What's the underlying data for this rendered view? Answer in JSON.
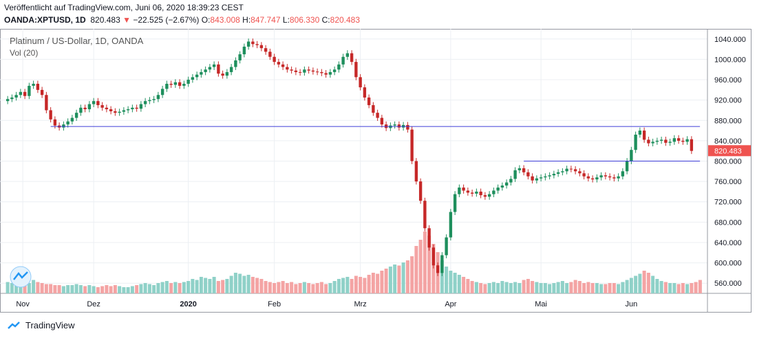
{
  "header": {
    "published": "Veröffentlicht auf TradingView.com, Juni 06, 2020 18:39:23 CEST",
    "symbol_line": "OANDA:XPTUSD, 1D",
    "last": "820.483",
    "change": "−22.525 (−2.67%)",
    "o_label": "O:",
    "o_val": "843.008",
    "h_label": "H:",
    "h_val": "847.747",
    "l_label": "L:",
    "l_val": "806.330",
    "c_label": "C:",
    "c_val": "820.483"
  },
  "legend": {
    "title": "Platinum / US-Dollar, 1D, OANDA",
    "volume": "Vol (20)"
  },
  "footer": {
    "brand": "TradingView"
  },
  "colors": {
    "up": "#26a69a",
    "down": "#ef5350",
    "up_candle": "#1e8f5d",
    "down_candle": "#c62828",
    "vol_up": "#8fd1c8",
    "vol_down": "#f4a4a4",
    "line": "#3c3cd6",
    "grid": "#eceff3"
  },
  "chart_data": {
    "type": "candlestick",
    "y_axis": {
      "range": [
        540,
        1060
      ],
      "ticks": [
        "560.000",
        "600.000",
        "640.000",
        "680.000",
        "720.000",
        "760.000",
        "800.000",
        "840.000",
        "880.000",
        "920.000",
        "960.000",
        "1000.000",
        "1040.000"
      ]
    },
    "x_axis": {
      "labels": [
        "Nov",
        "Dez",
        "2020",
        "Feb",
        "Mrz",
        "Apr",
        "Mai",
        "Jun"
      ]
    },
    "last_price_label": "820.483",
    "closes": [
      922,
      925,
      930,
      936,
      928,
      948,
      952,
      940,
      930,
      900,
      882,
      870,
      866,
      872,
      878,
      885,
      895,
      905,
      902,
      912,
      918,
      910,
      905,
      902,
      898,
      895,
      897,
      900,
      902,
      905,
      903,
      912,
      918,
      920,
      922,
      930,
      942,
      952,
      950,
      955,
      948,
      952,
      960,
      965,
      970,
      975,
      980,
      985,
      990,
      972,
      968,
      975,
      985,
      998,
      1010,
      1025,
      1035,
      1030,
      1028,
      1022,
      1015,
      1005,
      995,
      990,
      985,
      980,
      978,
      975,
      974,
      980,
      978,
      976,
      975,
      973,
      970,
      975,
      980,
      990,
      1005,
      1012,
      995,
      965,
      945,
      925,
      910,
      895,
      885,
      872,
      865,
      870,
      872,
      866,
      871,
      862,
      800,
      760,
      722,
      668,
      630,
      595,
      580,
      615,
      650,
      700,
      735,
      748,
      742,
      738,
      736,
      740,
      733,
      730,
      735,
      742,
      748,
      752,
      758,
      765,
      782,
      786,
      778,
      770,
      762,
      766,
      768,
      770,
      772,
      775,
      778,
      780,
      785,
      784,
      780,
      776,
      770,
      766,
      764,
      768,
      772,
      770,
      768,
      766,
      770,
      780,
      800,
      822,
      852,
      860,
      842,
      835,
      838,
      840,
      842,
      836,
      838,
      845,
      840,
      838,
      843,
      820
    ],
    "volumes": [
      0.55,
      0.5,
      0.45,
      0.6,
      0.55,
      0.5,
      0.65,
      0.55,
      0.5,
      0.45,
      0.45,
      0.4,
      0.4,
      0.35,
      0.4,
      0.4,
      0.45,
      0.4,
      0.35,
      0.4,
      0.35,
      0.3,
      0.35,
      0.4,
      0.35,
      0.4,
      0.35,
      0.3,
      0.3,
      0.35,
      0.4,
      0.45,
      0.5,
      0.45,
      0.4,
      0.5,
      0.55,
      0.6,
      0.5,
      0.55,
      0.5,
      0.55,
      0.6,
      0.7,
      0.65,
      0.8,
      0.75,
      0.7,
      0.8,
      0.6,
      0.65,
      0.7,
      0.85,
      1.0,
      0.95,
      0.85,
      0.9,
      0.8,
      0.75,
      0.7,
      0.6,
      0.55,
      0.5,
      0.55,
      0.6,
      0.5,
      0.55,
      0.45,
      0.5,
      0.55,
      0.5,
      0.45,
      0.5,
      0.55,
      0.45,
      0.5,
      0.6,
      0.7,
      0.75,
      0.8,
      0.7,
      0.85,
      0.8,
      0.75,
      0.9,
      1.0,
      0.95,
      1.1,
      1.2,
      1.3,
      1.4,
      1.35,
      1.5,
      1.6,
      1.8,
      2.3,
      2.6,
      3.0,
      2.8,
      2.4,
      2.0,
      1.6,
      1.3,
      1.1,
      1.0,
      0.9,
      0.8,
      0.7,
      0.6,
      0.55,
      0.5,
      0.45,
      0.5,
      0.55,
      0.5,
      0.6,
      0.55,
      0.5,
      0.55,
      0.5,
      0.65,
      0.7,
      0.6,
      0.55,
      0.5,
      0.5,
      0.45,
      0.5,
      0.55,
      0.6,
      0.5,
      0.55,
      0.65,
      0.6,
      0.5,
      0.55,
      0.5,
      0.5,
      0.45,
      0.45,
      0.5,
      0.5,
      0.45,
      0.55,
      0.65,
      0.75,
      0.85,
      0.95,
      1.1,
      1.0,
      0.85,
      0.7,
      0.6,
      0.55,
      0.5,
      0.5,
      0.45,
      0.5,
      0.45,
      0.5,
      0.55,
      0.65
    ],
    "lines": [
      {
        "name": "",
        "from_index": 10,
        "to_index": 160,
        "y": 868
      },
      {
        "name": "",
        "from_index": 120,
        "to_index": 160,
        "y": 800
      }
    ]
  }
}
